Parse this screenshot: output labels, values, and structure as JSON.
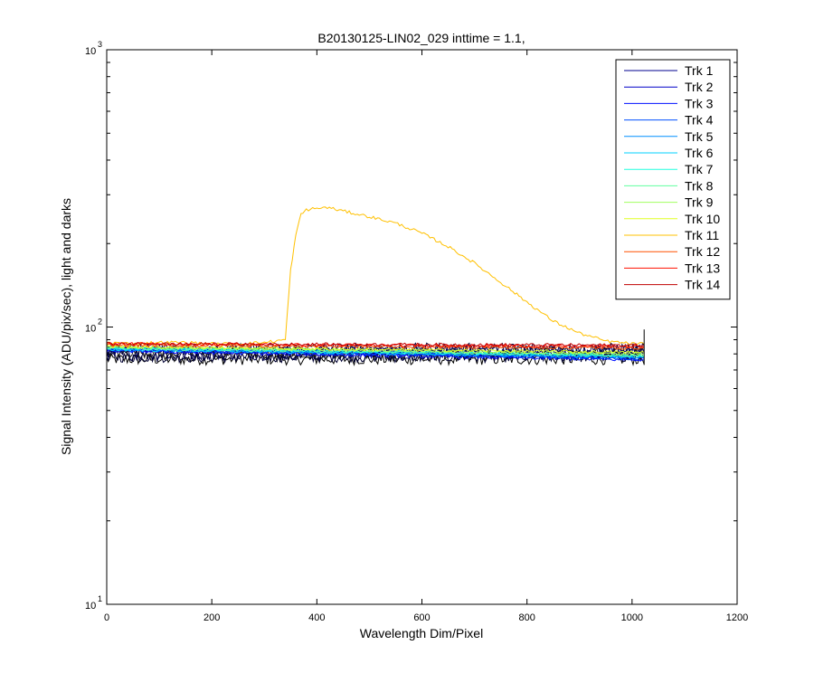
{
  "chart_data": {
    "type": "line",
    "title": "B20130125-LIN02_029 inttime = 1.1,",
    "xlabel": "Wavelength Dim/Pixel",
    "ylabel": "Signal Intensity (ADU/pix/sec), light and darks",
    "xlim": [
      0,
      1200
    ],
    "ylim": [
      10,
      1000
    ],
    "yscale": "log",
    "grid": false,
    "legend_position": "top-right",
    "x_ticks": [
      {
        "value": 0,
        "label": "0"
      },
      {
        "value": 200,
        "label": "200"
      },
      {
        "value": 400,
        "label": "400"
      },
      {
        "value": 600,
        "label": "600"
      },
      {
        "value": 800,
        "label": "800"
      },
      {
        "value": 1000,
        "label": "1000"
      },
      {
        "value": 1200,
        "label": "1200"
      }
    ],
    "y_ticks": [
      {
        "value": 10,
        "base": "10",
        "exp": "1"
      },
      {
        "value": 100,
        "base": "10",
        "exp": "2"
      },
      {
        "value": 1000,
        "base": "10",
        "exp": "3"
      }
    ],
    "series": [
      {
        "name": "Trk 1",
        "color": "#00008f",
        "x": [
          0,
          1023
        ],
        "y": [
          84,
          78
        ]
      },
      {
        "name": "Trk 2",
        "color": "#0000c8",
        "x": [
          0,
          1023
        ],
        "y": [
          83,
          77
        ]
      },
      {
        "name": "Trk 3",
        "color": "#0010ff",
        "x": [
          0,
          1023
        ],
        "y": [
          82,
          76
        ]
      },
      {
        "name": "Trk 4",
        "color": "#0050ff",
        "x": [
          0,
          1023
        ],
        "y": [
          83,
          77
        ]
      },
      {
        "name": "Trk 5",
        "color": "#0090ff",
        "x": [
          0,
          1023
        ],
        "y": [
          84,
          78
        ]
      },
      {
        "name": "Trk 6",
        "color": "#00d0ff",
        "x": [
          0,
          1023
        ],
        "y": [
          83,
          78
        ]
      },
      {
        "name": "Trk 7",
        "color": "#20ffdf",
        "x": [
          0,
          1023
        ],
        "y": [
          84,
          79
        ]
      },
      {
        "name": "Trk 8",
        "color": "#60ff9f",
        "x": [
          0,
          1023
        ],
        "y": [
          84,
          79
        ]
      },
      {
        "name": "Trk 9",
        "color": "#a0ff60",
        "x": [
          0,
          1023
        ],
        "y": [
          85,
          80
        ]
      },
      {
        "name": "Trk 10",
        "color": "#e0ff20",
        "x": [
          0,
          1023
        ],
        "y": [
          85,
          81
        ]
      },
      {
        "name": "Trk 11",
        "color": "#ffc000",
        "x": [
          0,
          50,
          100,
          150,
          200,
          250,
          300,
          340,
          350,
          360,
          370,
          380,
          400,
          420,
          450,
          500,
          550,
          600,
          650,
          700,
          750,
          800,
          850,
          900,
          950,
          1000,
          1023
        ],
        "y": [
          88,
          87,
          88,
          88,
          87,
          87,
          88,
          90,
          160,
          215,
          255,
          265,
          268,
          270,
          262,
          250,
          237,
          218,
          195,
          170,
          145,
          123,
          105,
          95,
          89,
          87,
          87
        ]
      },
      {
        "name": "Trk 12",
        "color": "#ff5000",
        "x": [
          0,
          1023
        ],
        "y": [
          86,
          84
        ]
      },
      {
        "name": "Trk 13",
        "color": "#ff1000",
        "x": [
          0,
          1023
        ],
        "y": [
          87,
          85
        ]
      },
      {
        "name": "Trk 14",
        "color": "#c00000",
        "x": [
          0,
          1023
        ],
        "y": [
          87,
          86
        ]
      }
    ]
  }
}
